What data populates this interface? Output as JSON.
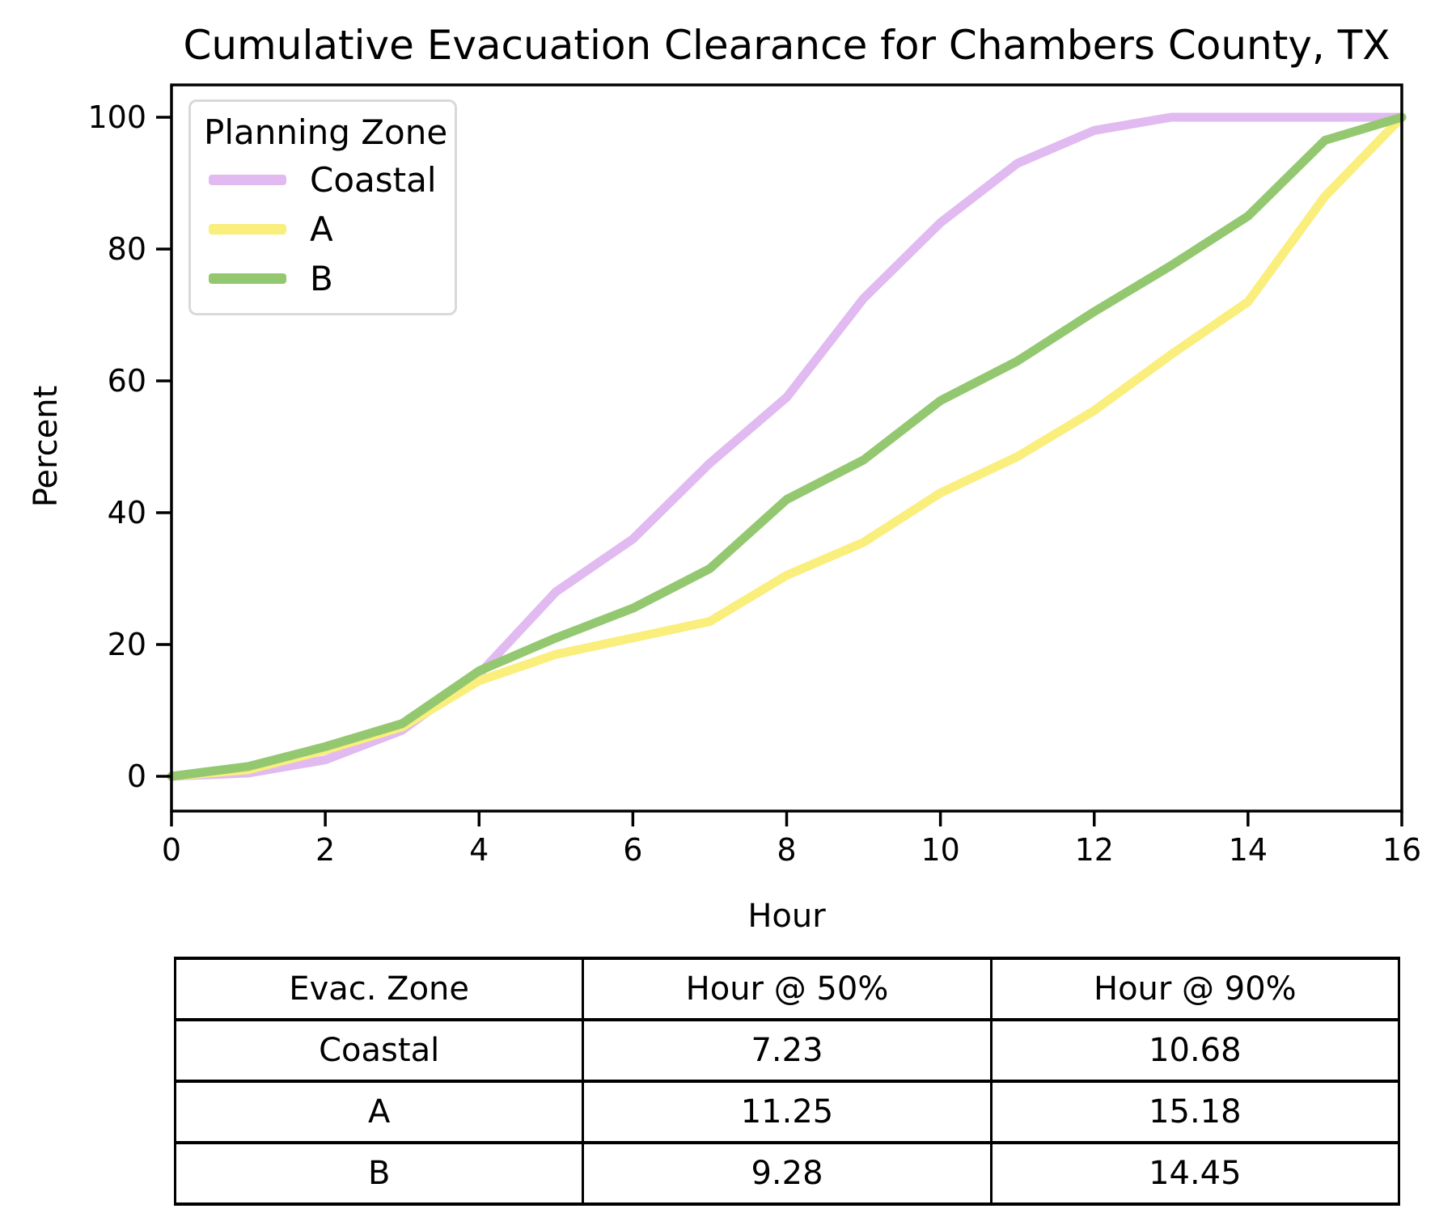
{
  "chart": {
    "title": "Cumulative Evacuation Clearance for Chambers County, TX",
    "xlabel": "Hour",
    "ylabel": "Percent"
  },
  "chart_data": {
    "type": "line",
    "title": "Cumulative Evacuation Clearance for Chambers County, TX",
    "xlabel": "Hour",
    "ylabel": "Percent",
    "x": [
      0,
      1,
      2,
      3,
      4,
      5,
      6,
      7,
      8,
      9,
      10,
      11,
      12,
      13,
      14,
      15,
      16
    ],
    "series": [
      {
        "name": "Coastal",
        "color": "#e0baf0",
        "values": [
          0,
          0.5,
          2.5,
          7,
          15.5,
          28,
          36,
          47.5,
          57.5,
          72.5,
          84,
          93,
          98,
          100,
          100,
          100,
          100
        ]
      },
      {
        "name": "A",
        "color": "#faee7d",
        "values": [
          0,
          1,
          4,
          7.5,
          14.5,
          18.5,
          21,
          23.5,
          30.5,
          35.5,
          43,
          48.5,
          55.5,
          64,
          72,
          88,
          100
        ]
      },
      {
        "name": "B",
        "color": "#94c870",
        "values": [
          0,
          1.5,
          4.5,
          8,
          16,
          21,
          25.5,
          31.5,
          42,
          48,
          57,
          63,
          70.5,
          77.5,
          85,
          96.5,
          100
        ]
      }
    ],
    "xticks": [
      0,
      2,
      4,
      6,
      8,
      10,
      12,
      14,
      16
    ],
    "yticks": [
      0,
      20,
      40,
      60,
      80,
      100
    ],
    "xlim": [
      0,
      16
    ],
    "ylim": [
      0,
      100
    ],
    "grid": false,
    "legend": {
      "title": "Planning Zone",
      "position": "upper left"
    }
  },
  "table": {
    "headers": [
      "Evac. Zone",
      "Hour @ 50%",
      "Hour @ 90%"
    ],
    "rows": [
      {
        "zone": "Coastal",
        "hour_50": "7.23",
        "hour_90": "10.68"
      },
      {
        "zone": "A",
        "hour_50": "11.25",
        "hour_90": "15.18"
      },
      {
        "zone": "B",
        "hour_50": "9.28",
        "hour_90": "14.45"
      }
    ]
  }
}
